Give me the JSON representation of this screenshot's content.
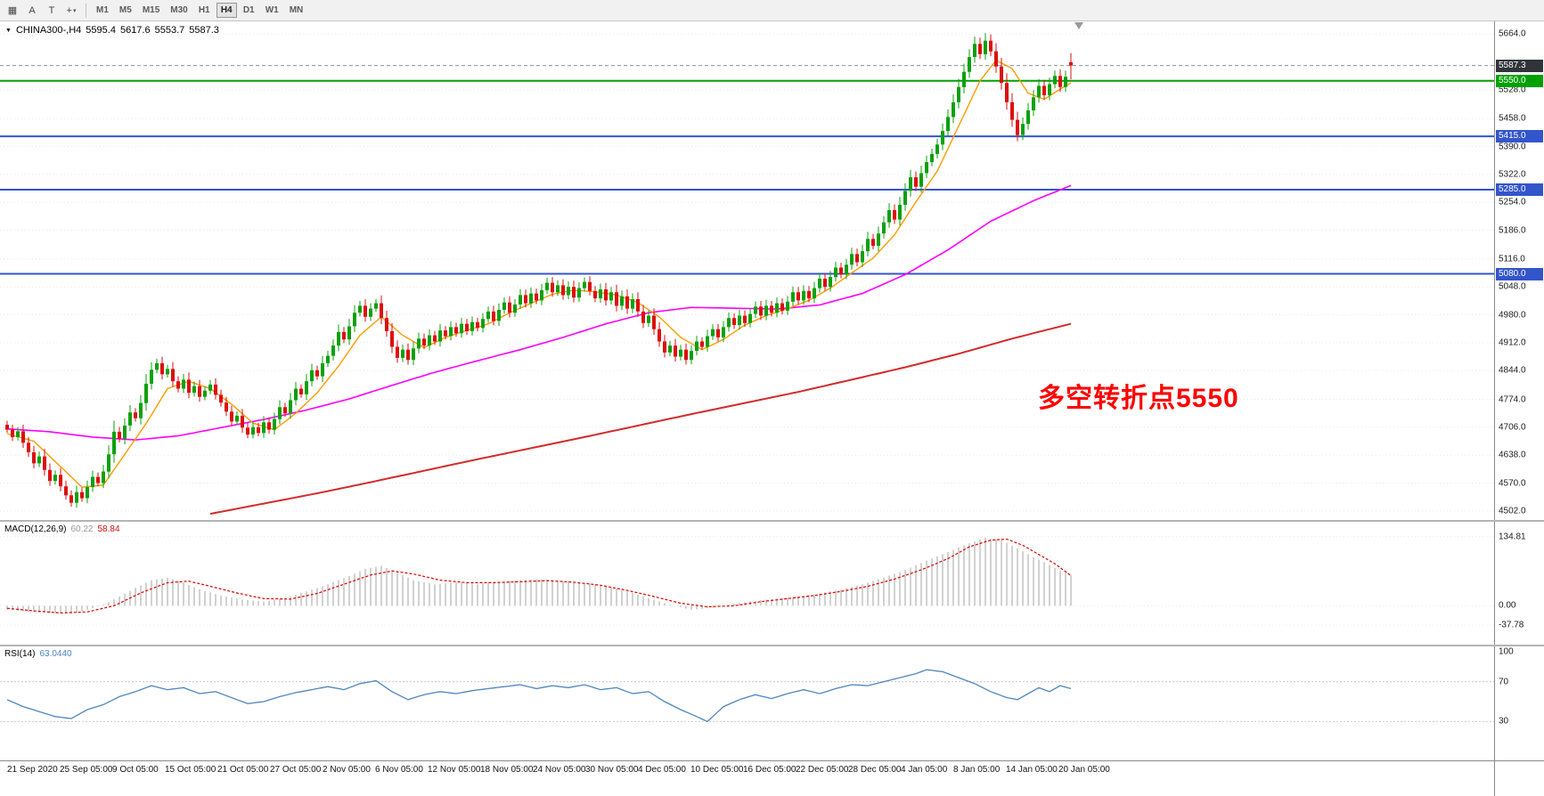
{
  "toolbar": {
    "tools": [
      {
        "name": "grid-pattern-button",
        "glyph": "▦"
      },
      {
        "name": "cursor-tool-button",
        "glyph": "A"
      },
      {
        "name": "text-tool-button",
        "glyph": "T"
      },
      {
        "name": "crosshair-tool-button",
        "glyph": "+",
        "caret": true
      }
    ],
    "timeframes": [
      "M1",
      "M5",
      "M15",
      "M30",
      "H1",
      "H4",
      "D1",
      "W1",
      "MN"
    ],
    "active_timeframe": "H4"
  },
  "colors": {
    "candle_up": "#0BA00B",
    "candle_down": "#DD0E0E",
    "grid": "#E7E7E7",
    "macd_hist": "#BDBDBD",
    "macd_signal": "#DD0000",
    "rsi_line": "#4E86C0",
    "current_price_line": "#8F8F8F",
    "shift_marker": "#9a9a9a"
  },
  "chart": {
    "symbol_header": {
      "symbol": "CHINA300-,H4",
      "open": "5595.4",
      "high": "5617.6",
      "low": "5553.7",
      "close": "5587.3"
    },
    "annotation": {
      "text": "多空转折点5550",
      "color": "#FF0000"
    },
    "price_scale": {
      "ticks": [
        "5664.0",
        "5528.0",
        "5458.0",
        "5390.0",
        "5322.0",
        "5254.0",
        "5186.0",
        "5116.0",
        "5048.0",
        "4980.0",
        "4912.0",
        "4844.0",
        "4774.0",
        "4706.0",
        "4638.0",
        "4570.0",
        "4502.0"
      ]
    },
    "price_badges": [
      {
        "value": "5587.3",
        "color": "#30343A"
      },
      {
        "value": "5550.0",
        "color": "#00A000"
      },
      {
        "value": "5415.0",
        "color": "#3355CC"
      },
      {
        "value": "5285.0",
        "color": "#3355CC"
      },
      {
        "value": "5080.0",
        "color": "#3355CC"
      }
    ],
    "hlines": [
      {
        "price": 5550,
        "color": "#00A000"
      },
      {
        "price": 5415,
        "color": "#3355CC"
      },
      {
        "price": 5285,
        "color": "#3355CC"
      },
      {
        "price": 5080,
        "color": "#3355CC"
      }
    ]
  },
  "chart_data": {
    "type": "candlestick",
    "symbol": "CHINA300-",
    "timeframe": "H4",
    "visible_price_range": [
      4502.0,
      5664.0
    ],
    "last_ohlc": [
      5595.4,
      5617.6,
      5553.7,
      5587.3
    ],
    "closes": [
      4700,
      4682,
      4696,
      4668,
      4645,
      4618,
      4635,
      4602,
      4575,
      4590,
      4562,
      4540,
      4522,
      4548,
      4533,
      4560,
      4585,
      4570,
      4598,
      4640,
      4695,
      4678,
      4710,
      4742,
      4728,
      4765,
      4812,
      4846,
      4862,
      4835,
      4848,
      4818,
      4800,
      4822,
      4790,
      4806,
      4780,
      4795,
      4810,
      4785,
      4766,
      4744,
      4720,
      4734,
      4705,
      4688,
      4706,
      4692,
      4718,
      4700,
      4726,
      4755,
      4740,
      4772,
      4800,
      4786,
      4818,
      4845,
      4830,
      4862,
      4880,
      4905,
      4938,
      4920,
      4952,
      4985,
      5002,
      4975,
      4995,
      5008,
      4972,
      4940,
      4902,
      4875,
      4895,
      4870,
      4898,
      4922,
      4905,
      4930,
      4915,
      4942,
      4928,
      4950,
      4935,
      4958,
      4940,
      4962,
      4948,
      4970,
      4988,
      4965,
      4992,
      5010,
      4985,
      5005,
      5028,
      5008,
      5032,
      5015,
      5040,
      5058,
      5035,
      5052,
      5028,
      5048,
      5022,
      5045,
      5060,
      5038,
      5020,
      5042,
      5015,
      5035,
      5002,
      5025,
      4995,
      5018,
      4988,
      4960,
      4978,
      4945,
      4915,
      4888,
      4905,
      4878,
      4895,
      4870,
      4892,
      4915,
      4902,
      4928,
      4945,
      4925,
      4950,
      4972,
      4955,
      4978,
      4960,
      4982,
      5000,
      4978,
      5002,
      4985,
      5008,
      4990,
      5012,
      5035,
      5015,
      5038,
      5020,
      5045,
      5068,
      5048,
      5072,
      5095,
      5078,
      5102,
      5128,
      5108,
      5135,
      5165,
      5148,
      5178,
      5205,
      5235,
      5212,
      5248,
      5282,
      5315,
      5292,
      5325,
      5352,
      5372,
      5395,
      5428,
      5462,
      5498,
      5535,
      5572,
      5608,
      5640,
      5615,
      5648,
      5622,
      5585,
      5545,
      5498,
      5455,
      5418,
      5445,
      5478,
      5510,
      5538,
      5515,
      5542,
      5562,
      5535,
      5560,
      5587.3
    ],
    "ma_fast_orange": {
      "color": "#FF9C00",
      "points": [
        [
          0,
          4690
        ],
        [
          5,
          4672
        ],
        [
          10,
          4610
        ],
        [
          14,
          4560
        ],
        [
          18,
          4565
        ],
        [
          22,
          4640
        ],
        [
          26,
          4715
        ],
        [
          30,
          4800
        ],
        [
          34,
          4818
        ],
        [
          38,
          4800
        ],
        [
          42,
          4762
        ],
        [
          46,
          4716
        ],
        [
          50,
          4700
        ],
        [
          54,
          4740
        ],
        [
          58,
          4790
        ],
        [
          62,
          4855
        ],
        [
          66,
          4930
        ],
        [
          70,
          4975
        ],
        [
          74,
          4930
        ],
        [
          78,
          4900
        ],
        [
          82,
          4925
        ],
        [
          86,
          4942
        ],
        [
          90,
          4958
        ],
        [
          94,
          4985
        ],
        [
          98,
          5008
        ],
        [
          102,
          5030
        ],
        [
          106,
          5040
        ],
        [
          110,
          5036
        ],
        [
          114,
          5028
        ],
        [
          118,
          5010
        ],
        [
          122,
          4975
        ],
        [
          126,
          4925
        ],
        [
          130,
          4895
        ],
        [
          134,
          4920
        ],
        [
          138,
          4955
        ],
        [
          142,
          4978
        ],
        [
          146,
          4995
        ],
        [
          150,
          5015
        ],
        [
          154,
          5045
        ],
        [
          158,
          5082
        ],
        [
          162,
          5118
        ],
        [
          166,
          5175
        ],
        [
          170,
          5255
        ],
        [
          174,
          5330
        ],
        [
          178,
          5440
        ],
        [
          182,
          5550
        ],
        [
          185,
          5600
        ],
        [
          188,
          5580
        ],
        [
          191,
          5520
        ],
        [
          194,
          5505
        ],
        [
          197,
          5530
        ],
        [
          199,
          5545
        ]
      ]
    },
    "ma_mid_magenta": {
      "color": "#FF00FF",
      "points": [
        [
          0,
          4702
        ],
        [
          8,
          4695
        ],
        [
          16,
          4682
        ],
        [
          24,
          4675
        ],
        [
          32,
          4685
        ],
        [
          40,
          4705
        ],
        [
          48,
          4725
        ],
        [
          56,
          4748
        ],
        [
          64,
          4775
        ],
        [
          72,
          4808
        ],
        [
          80,
          4840
        ],
        [
          88,
          4868
        ],
        [
          96,
          4895
        ],
        [
          104,
          4925
        ],
        [
          112,
          4958
        ],
        [
          120,
          4985
        ],
        [
          128,
          4998
        ],
        [
          136,
          4996
        ],
        [
          144,
          4994
        ],
        [
          152,
          5004
        ],
        [
          160,
          5032
        ],
        [
          168,
          5078
        ],
        [
          176,
          5138
        ],
        [
          184,
          5208
        ],
        [
          192,
          5258
        ],
        [
          199,
          5295
        ]
      ]
    },
    "ma_slow_red": {
      "color": "#D42A2A",
      "points": [
        [
          38,
          4495
        ],
        [
          48,
          4520
        ],
        [
          58,
          4545
        ],
        [
          68,
          4572
        ],
        [
          78,
          4600
        ],
        [
          88,
          4628
        ],
        [
          98,
          4655
        ],
        [
          108,
          4682
        ],
        [
          118,
          4710
        ],
        [
          128,
          4738
        ],
        [
          138,
          4765
        ],
        [
          148,
          4792
        ],
        [
          158,
          4822
        ],
        [
          168,
          4852
        ],
        [
          178,
          4885
        ],
        [
          188,
          4922
        ],
        [
          199,
          4958
        ]
      ]
    },
    "macd": {
      "label": "MACD(12,26,9)",
      "main_value": "60.22",
      "signal_value": "58.84",
      "scale": [
        "134.81",
        "0.00",
        "-37.78"
      ],
      "hist": [
        [
          0,
          -8
        ],
        [
          4,
          -12
        ],
        [
          8,
          -14
        ],
        [
          12,
          -16
        ],
        [
          15,
          -8
        ],
        [
          18,
          2
        ],
        [
          21,
          18
        ],
        [
          24,
          35
        ],
        [
          27,
          50
        ],
        [
          30,
          55
        ],
        [
          33,
          45
        ],
        [
          36,
          32
        ],
        [
          40,
          20
        ],
        [
          44,
          12
        ],
        [
          48,
          8
        ],
        [
          52,
          15
        ],
        [
          56,
          28
        ],
        [
          60,
          42
        ],
        [
          64,
          58
        ],
        [
          67,
          72
        ],
        [
          70,
          78
        ],
        [
          73,
          65
        ],
        [
          76,
          50
        ],
        [
          80,
          42
        ],
        [
          84,
          46
        ],
        [
          88,
          43
        ],
        [
          92,
          47
        ],
        [
          96,
          50
        ],
        [
          100,
          52
        ],
        [
          104,
          48
        ],
        [
          108,
          45
        ],
        [
          112,
          38
        ],
        [
          116,
          28
        ],
        [
          120,
          15
        ],
        [
          124,
          2
        ],
        [
          128,
          -8
        ],
        [
          132,
          -4
        ],
        [
          136,
          4
        ],
        [
          140,
          10
        ],
        [
          144,
          14
        ],
        [
          148,
          18
        ],
        [
          152,
          24
        ],
        [
          156,
          32
        ],
        [
          160,
          42
        ],
        [
          164,
          55
        ],
        [
          168,
          70
        ],
        [
          172,
          88
        ],
        [
          176,
          105
        ],
        [
          180,
          122
        ],
        [
          183,
          133
        ],
        [
          186,
          128
        ],
        [
          189,
          112
        ],
        [
          192,
          95
        ],
        [
          195,
          80
        ],
        [
          197,
          68
        ],
        [
          199,
          60.22
        ]
      ],
      "signal_line": [
        [
          0,
          -5
        ],
        [
          5,
          -10
        ],
        [
          10,
          -14
        ],
        [
          15,
          -12
        ],
        [
          20,
          0
        ],
        [
          25,
          25
        ],
        [
          30,
          45
        ],
        [
          34,
          48
        ],
        [
          38,
          38
        ],
        [
          43,
          25
        ],
        [
          48,
          14
        ],
        [
          53,
          13
        ],
        [
          58,
          24
        ],
        [
          63,
          42
        ],
        [
          68,
          60
        ],
        [
          72,
          68
        ],
        [
          76,
          62
        ],
        [
          81,
          50
        ],
        [
          86,
          45
        ],
        [
          91,
          45
        ],
        [
          96,
          47
        ],
        [
          101,
          49
        ],
        [
          106,
          46
        ],
        [
          111,
          40
        ],
        [
          116,
          30
        ],
        [
          121,
          18
        ],
        [
          126,
          5
        ],
        [
          131,
          -2
        ],
        [
          136,
          0
        ],
        [
          141,
          8
        ],
        [
          146,
          14
        ],
        [
          151,
          20
        ],
        [
          156,
          28
        ],
        [
          161,
          38
        ],
        [
          166,
          52
        ],
        [
          171,
          70
        ],
        [
          176,
          92
        ],
        [
          180,
          115
        ],
        [
          184,
          128
        ],
        [
          187,
          130
        ],
        [
          190,
          118
        ],
        [
          193,
          100
        ],
        [
          196,
          82
        ],
        [
          199,
          58.84
        ]
      ]
    },
    "rsi": {
      "label": "RSI(14)",
      "value": "63.0440",
      "scale": [
        "100",
        "70",
        "30"
      ],
      "levels": [
        70,
        30
      ],
      "line": [
        [
          0,
          52
        ],
        [
          3,
          45
        ],
        [
          6,
          40
        ],
        [
          9,
          35
        ],
        [
          12,
          33
        ],
        [
          15,
          42
        ],
        [
          18,
          47
        ],
        [
          21,
          55
        ],
        [
          24,
          60
        ],
        [
          27,
          66
        ],
        [
          30,
          62
        ],
        [
          33,
          64
        ],
        [
          36,
          58
        ],
        [
          39,
          60
        ],
        [
          42,
          54
        ],
        [
          45,
          48
        ],
        [
          48,
          50
        ],
        [
          51,
          55
        ],
        [
          54,
          59
        ],
        [
          57,
          62
        ],
        [
          60,
          65
        ],
        [
          63,
          62
        ],
        [
          66,
          68
        ],
        [
          69,
          71
        ],
        [
          72,
          60
        ],
        [
          75,
          52
        ],
        [
          78,
          57
        ],
        [
          81,
          60
        ],
        [
          84,
          58
        ],
        [
          87,
          61
        ],
        [
          90,
          63
        ],
        [
          93,
          65
        ],
        [
          96,
          67
        ],
        [
          99,
          63
        ],
        [
          102,
          66
        ],
        [
          105,
          64
        ],
        [
          108,
          67
        ],
        [
          111,
          62
        ],
        [
          114,
          64
        ],
        [
          117,
          58
        ],
        [
          120,
          60
        ],
        [
          123,
          50
        ],
        [
          126,
          42
        ],
        [
          129,
          35
        ],
        [
          131,
          30
        ],
        [
          134,
          45
        ],
        [
          137,
          52
        ],
        [
          140,
          57
        ],
        [
          143,
          53
        ],
        [
          146,
          58
        ],
        [
          149,
          62
        ],
        [
          152,
          58
        ],
        [
          155,
          63
        ],
        [
          158,
          67
        ],
        [
          161,
          66
        ],
        [
          164,
          70
        ],
        [
          167,
          74
        ],
        [
          170,
          78
        ],
        [
          172,
          82
        ],
        [
          175,
          80
        ],
        [
          178,
          74
        ],
        [
          181,
          68
        ],
        [
          184,
          60
        ],
        [
          187,
          54
        ],
        [
          189,
          52
        ],
        [
          191,
          58
        ],
        [
          193,
          64
        ],
        [
          195,
          60
        ],
        [
          197,
          66
        ],
        [
          199,
          63.04
        ]
      ]
    },
    "time_labels": [
      "21 Sep 2020",
      "25 Sep 05:00",
      "9 Oct 05:00",
      "15 Oct 05:00",
      "21 Oct 05:00",
      "27 Oct 05:00",
      "2 Nov 05:00",
      "6 Nov 05:00",
      "12 Nov 05:00",
      "18 Nov 05:00",
      "24 Nov 05:00",
      "30 Nov 05:00",
      "4 Dec 05:00",
      "10 Dec 05:00",
      "16 Dec 05:00",
      "22 Dec 05:00",
      "28 Dec 05:00",
      "4 Jan 05:00",
      "8 Jan 05:00",
      "14 Jan 05:00",
      "20 Jan 05:00"
    ]
  }
}
